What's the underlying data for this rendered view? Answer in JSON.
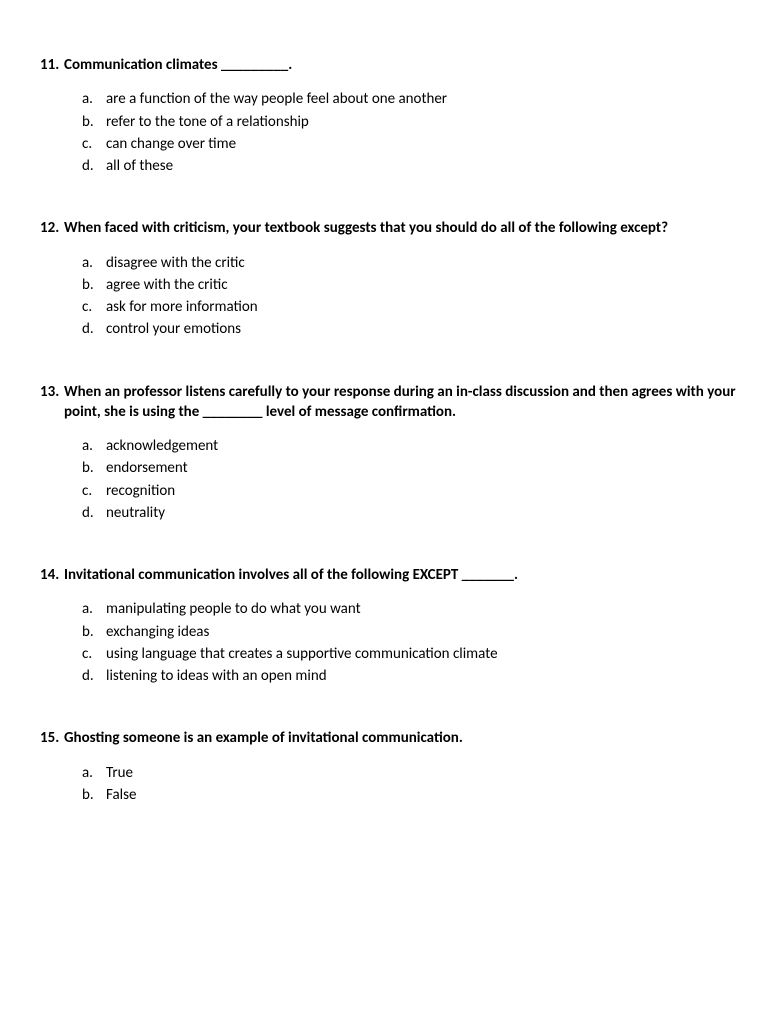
{
  "questions": [
    {
      "number": "11.",
      "text": "Communication climates _________.",
      "options": [
        {
          "letter": "a.",
          "text": "are a function of the way people feel about one another"
        },
        {
          "letter": "b.",
          "text": "refer to the tone of a relationship"
        },
        {
          "letter": "c.",
          "text": "can change over time"
        },
        {
          "letter": "d.",
          "text": "all of these"
        }
      ]
    },
    {
      "number": "12.",
      "text": "When faced with criticism, your textbook suggests that you should do all of the following except?",
      "options": [
        {
          "letter": "a.",
          "text": "disagree with the critic"
        },
        {
          "letter": "b.",
          "text": "agree with the critic"
        },
        {
          "letter": "c.",
          "text": "ask for more information"
        },
        {
          "letter": "d.",
          "text": "control your emotions"
        }
      ]
    },
    {
      "number": "13.",
      "text": "When an professor listens carefully to your response during an in-class discussion and then agrees with your point, she is using the ________  level of message confirmation.",
      "options": [
        {
          "letter": "a.",
          "text": "acknowledgement"
        },
        {
          "letter": "b.",
          "text": "endorsement"
        },
        {
          "letter": "c.",
          "text": "recognition"
        },
        {
          "letter": "d.",
          "text": "neutrality"
        }
      ]
    },
    {
      "number": "14.",
      "text": "Invitational communication involves all of the following EXCEPT _______.",
      "options": [
        {
          "letter": "a.",
          "text": "manipulating people to do what you want"
        },
        {
          "letter": "b.",
          "text": "exchanging ideas"
        },
        {
          "letter": "c.",
          "text": "using language that creates a supportive communication climate"
        },
        {
          "letter": "d.",
          "text": "listening to ideas with an open mind"
        }
      ]
    },
    {
      "number": "15.",
      "text": "Ghosting someone is an example of invitational communication.",
      "options": [
        {
          "letter": "a.",
          "text": "True"
        },
        {
          "letter": "b.",
          "text": "False"
        }
      ]
    }
  ]
}
